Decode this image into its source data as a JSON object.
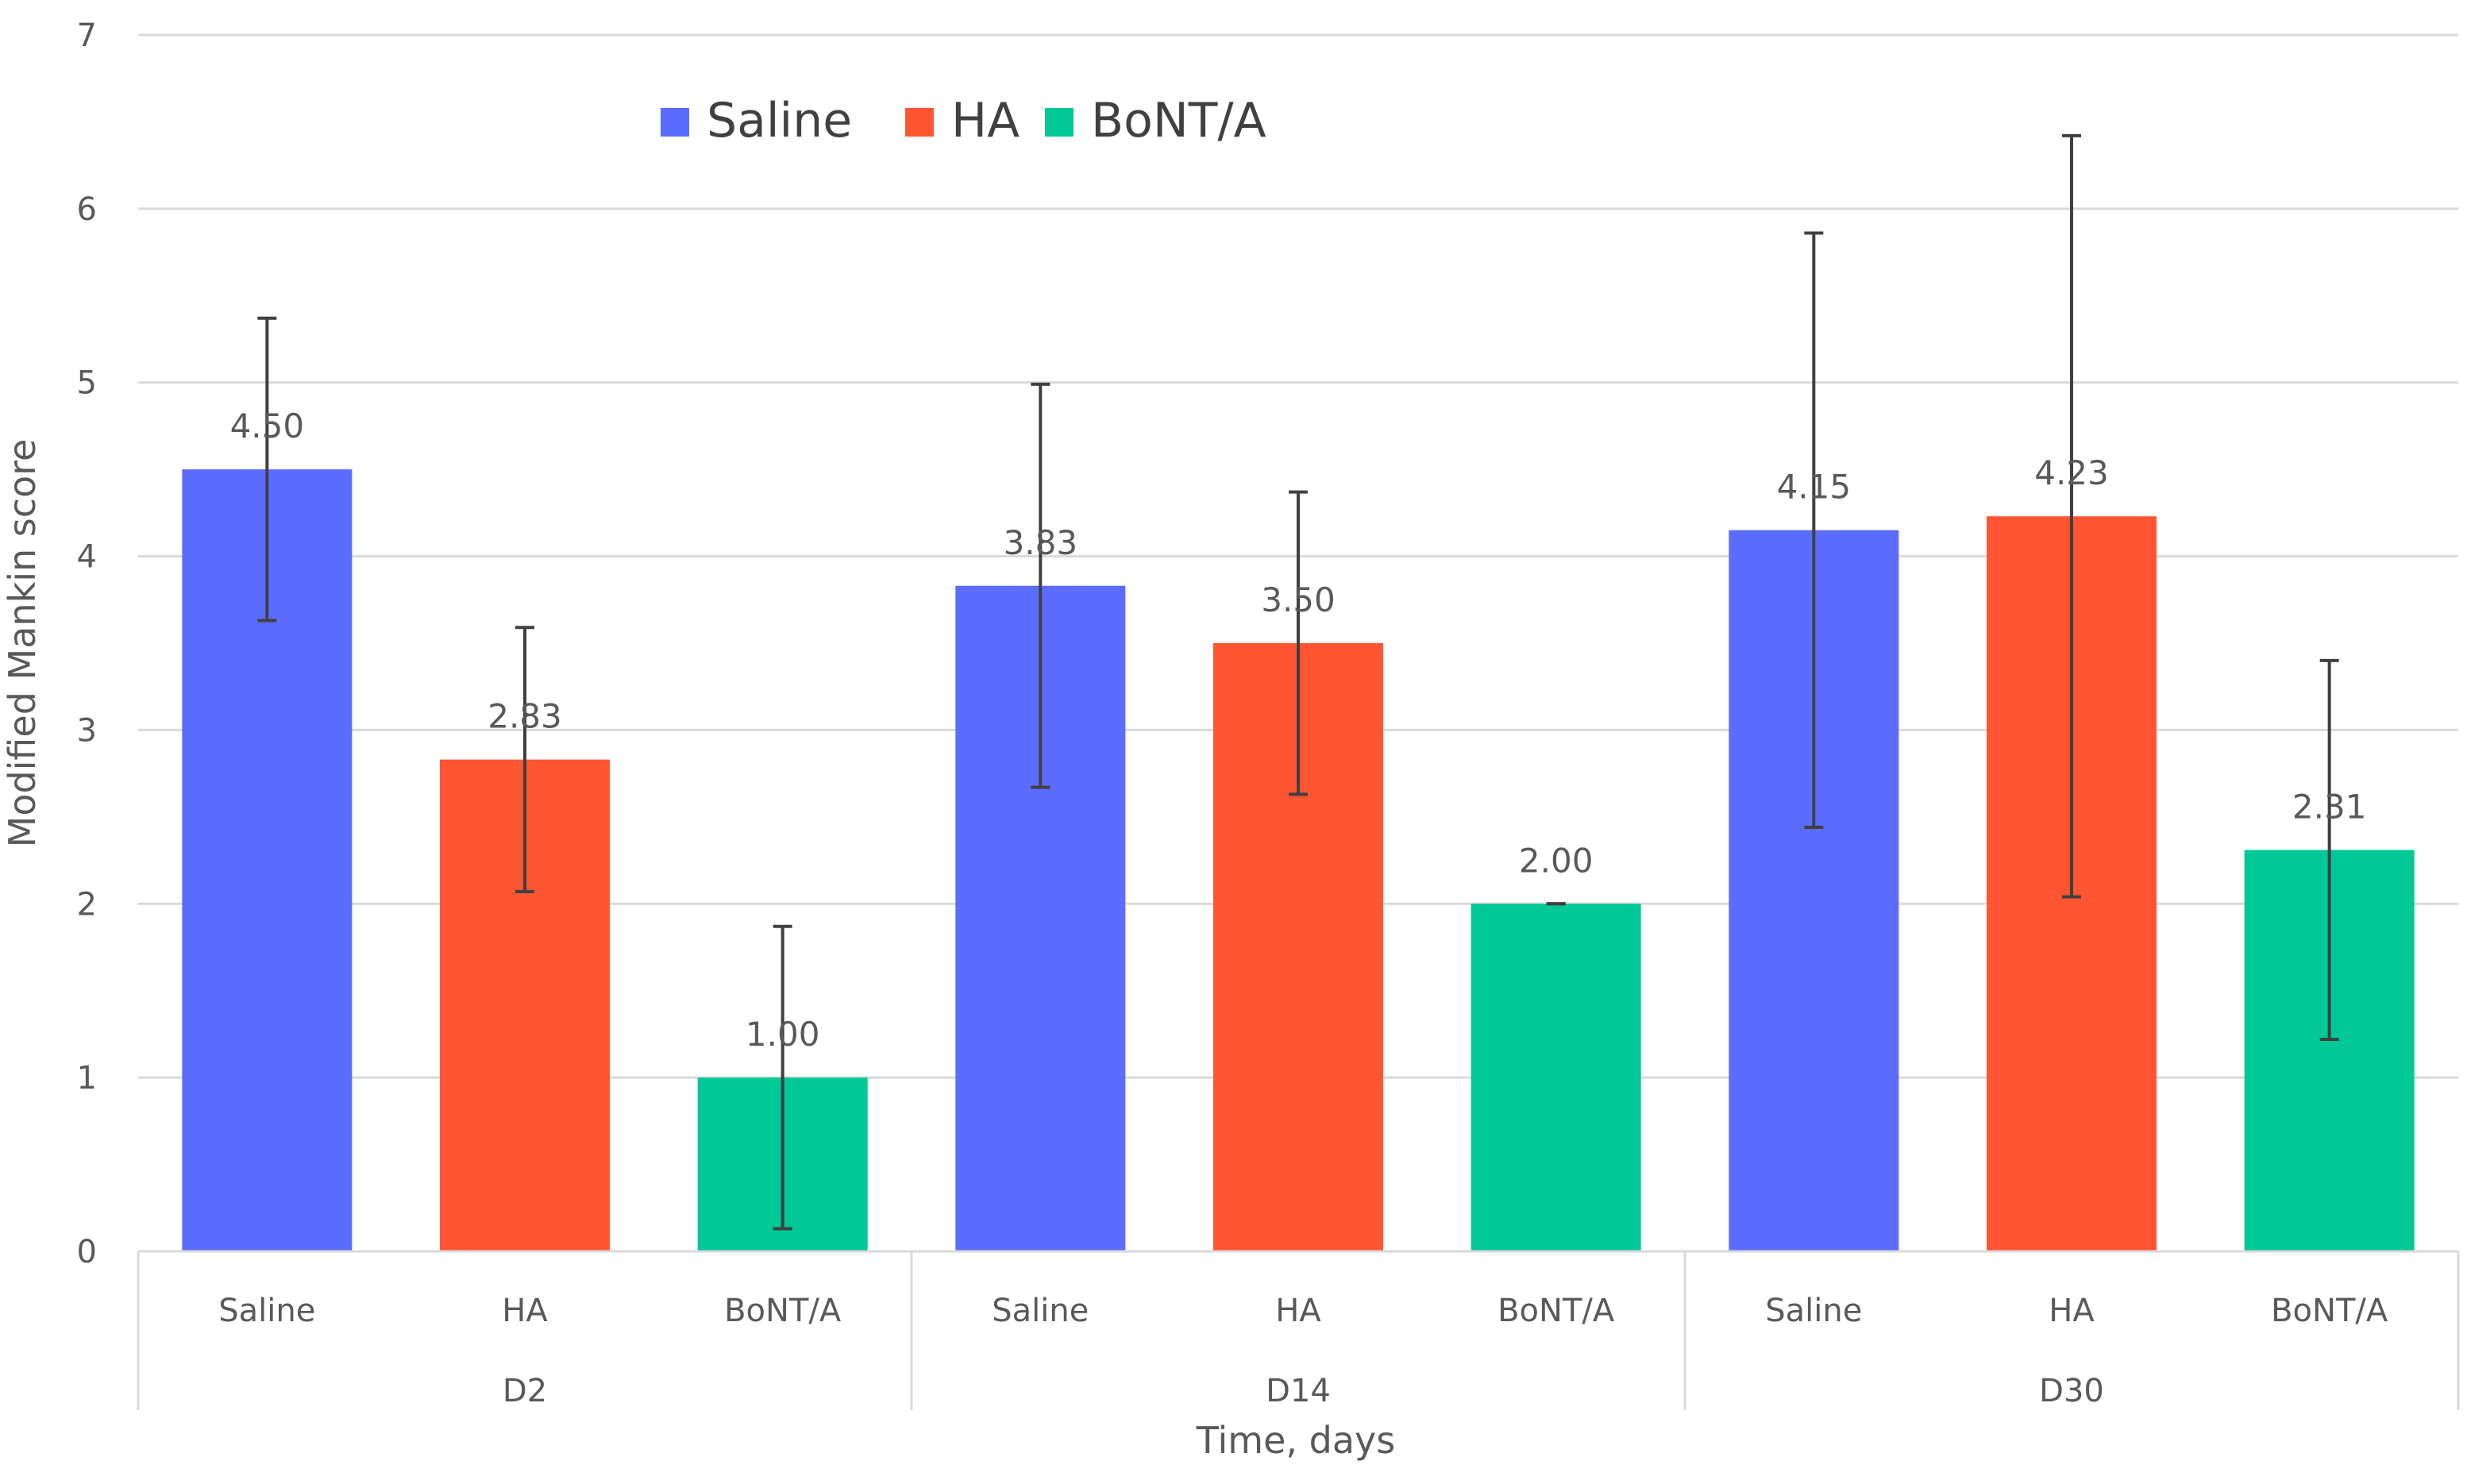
{
  "chart_data": {
    "type": "bar",
    "title": "",
    "xlabel": "Time, days",
    "ylabel": "Modified Mankin score",
    "ylim": [
      0,
      7
    ],
    "yticks": [
      "0",
      "1",
      "2",
      "3",
      "4",
      "5",
      "6",
      "7"
    ],
    "grid": true,
    "legend_position": "top-center",
    "series": [
      {
        "name": "Saline",
        "color": "#5b6cff"
      },
      {
        "name": "HA",
        "color": "#ff5533"
      },
      {
        "name": "BoNT/A",
        "color": "#00c896"
      }
    ],
    "groups": [
      {
        "name": "D2",
        "bars": [
          {
            "category": "Saline",
            "series": "Saline",
            "value": 4.5,
            "label": "4.50",
            "err_low": 3.63,
            "err_high": 5.37
          },
          {
            "category": "HA",
            "series": "HA",
            "value": 2.83,
            "label": "2.83",
            "err_low": 2.07,
            "err_high": 3.59
          },
          {
            "category": "BoNT/A",
            "series": "BoNT/A",
            "value": 1.0,
            "label": "1.00",
            "err_low": 0.13,
            "err_high": 1.87
          }
        ]
      },
      {
        "name": "D14",
        "bars": [
          {
            "category": "Saline",
            "series": "Saline",
            "value": 3.83,
            "label": "3.83",
            "err_low": 2.67,
            "err_high": 4.99
          },
          {
            "category": "HA",
            "series": "HA",
            "value": 3.5,
            "label": "3.50",
            "err_low": 2.63,
            "err_high": 4.37
          },
          {
            "category": "BoNT/A",
            "series": "BoNT/A",
            "value": 2.0,
            "label": "2.00",
            "err_low": 2.0,
            "err_high": 2.0
          }
        ]
      },
      {
        "name": "D30",
        "bars": [
          {
            "category": "Saline",
            "series": "Saline",
            "value": 4.15,
            "label": "4.15",
            "err_low": 2.44,
            "err_high": 5.86
          },
          {
            "category": "HA",
            "series": "HA",
            "value": 4.23,
            "label": "4.23",
            "err_low": 2.04,
            "err_high": 6.42
          },
          {
            "category": "BoNT/A",
            "series": "BoNT/A",
            "value": 2.31,
            "label": "2.31",
            "err_low": 1.22,
            "err_high": 3.4
          }
        ]
      }
    ]
  }
}
